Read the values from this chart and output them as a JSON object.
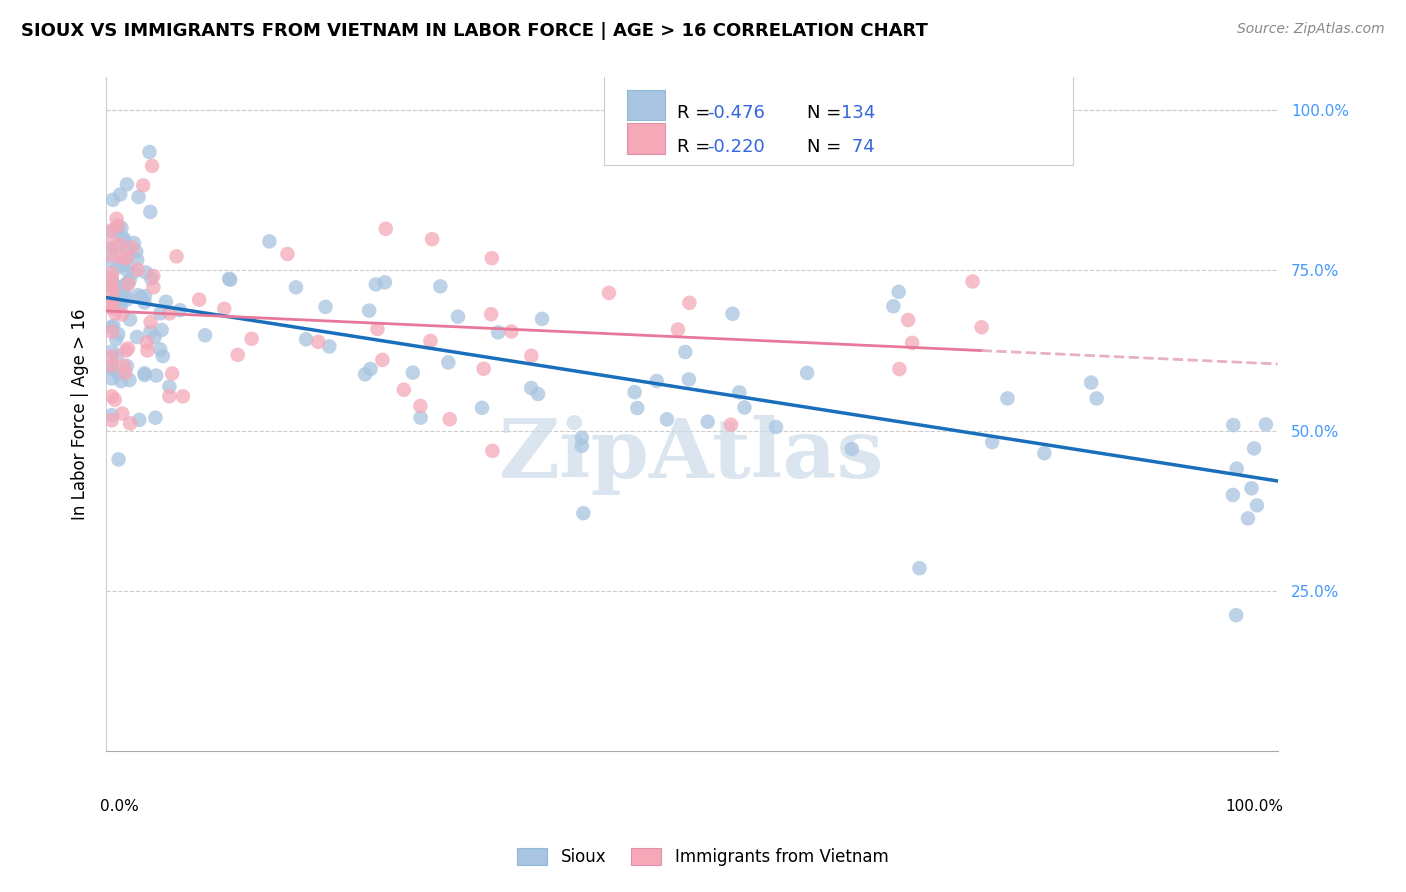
{
  "title": "SIOUX VS IMMIGRANTS FROM VIETNAM IN LABOR FORCE | AGE > 16 CORRELATION CHART",
  "source": "Source: ZipAtlas.com",
  "ylabel": "In Labor Force | Age > 16",
  "legend_label1": "Sioux",
  "legend_label2": "Immigrants from Vietnam",
  "legend_r1": "-0.476",
  "legend_n1": "134",
  "legend_r2": "-0.220",
  "legend_n2": " 74",
  "color_blue": "#a8c4e0",
  "color_pink": "#f4a8b8",
  "color_blue_line": "#1a6fbd",
  "color_pink_line": "#e8789a",
  "color_pink_line_dash": "#e8b0c0",
  "watermark": "ZipAtlas",
  "watermark_color": "#c8d8e8",
  "grid_color": "#cccccc",
  "title_fontsize": 13,
  "axis_label_fontsize": 12,
  "tick_fontsize": 11,
  "legend_fontsize": 13,
  "scatter_size": 110,
  "scatter_alpha": 0.75
}
